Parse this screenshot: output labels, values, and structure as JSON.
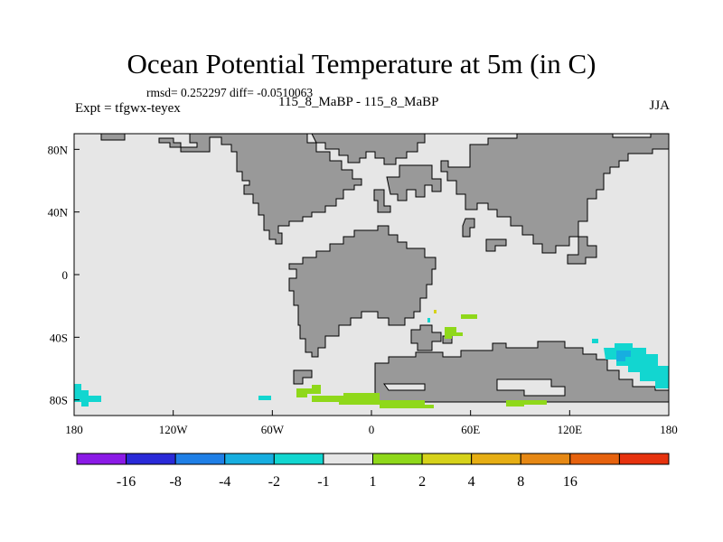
{
  "title": "Ocean Potential Temperature at 5m (in C)",
  "stats_line": "rmsd= 0.252297 diff= -0.0510063",
  "expt_line": "Expt = tfgwx-teyex",
  "case_line": "115_8_MaBP - 115_8_MaBP",
  "season": "JJA",
  "map": {
    "lon_ticks": [
      "180",
      "120W",
      "60W",
      "0",
      "60E",
      "120E",
      "180"
    ],
    "lat_ticks": [
      "80N",
      "40N",
      "0",
      "40S",
      "80S"
    ],
    "ocean_color": "#e6e6e6",
    "land_color": "#999999"
  },
  "colorbar": {
    "colors": [
      "#8b1ae6",
      "#2a2ad8",
      "#1f7fe6",
      "#17aee0",
      "#12d6d0",
      "#e6e6e6",
      "#8fd81a",
      "#d6d21a",
      "#e6ae14",
      "#e68814",
      "#e6620e",
      "#e6320e"
    ],
    "labels": [
      "-16",
      "-8",
      "-4",
      "-2",
      "-1",
      "1",
      "2",
      "4",
      "8",
      "16"
    ]
  },
  "anomaly_colors": {
    "cyan": "#12d6d0",
    "blue": "#17aee0",
    "green": "#8fd81a"
  }
}
